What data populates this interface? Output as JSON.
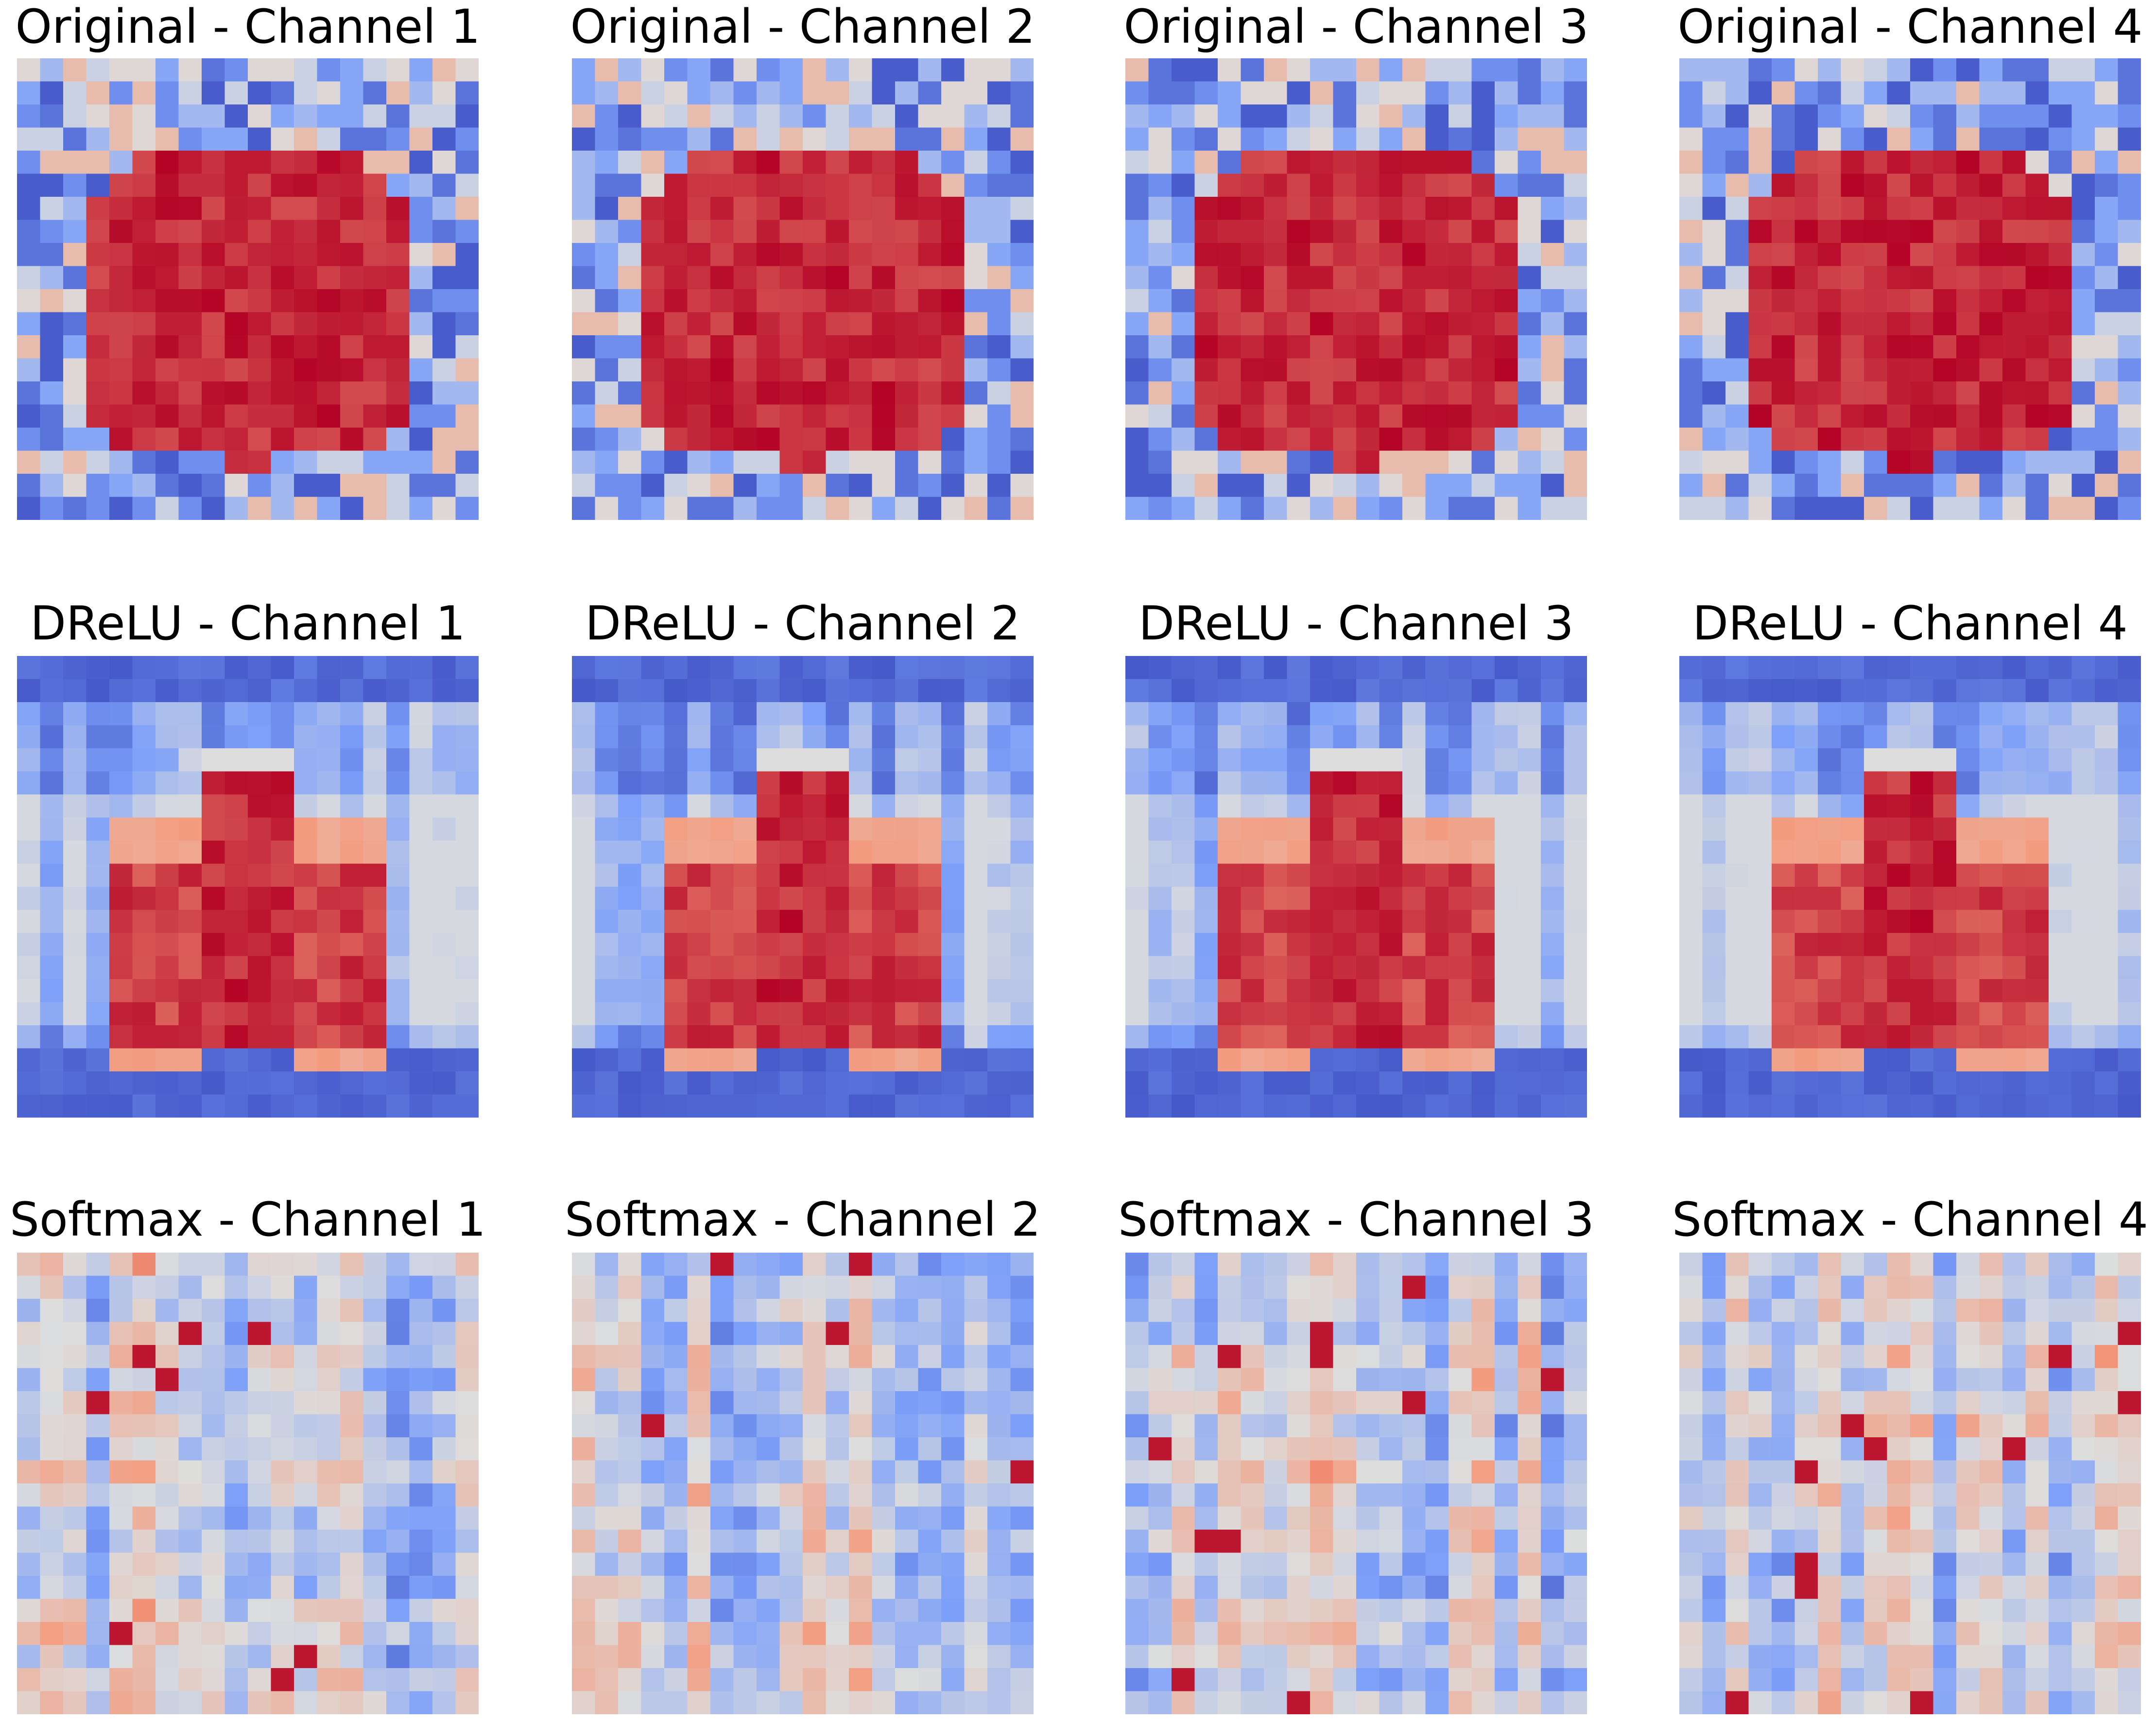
{
  "chart_data": {
    "type": "heatmap",
    "colormap": "coolwarm",
    "grid_size": 20,
    "rows": [
      {
        "name": "Original",
        "pattern": "blob",
        "panels": [
          {
            "title": "Original - Channel 1",
            "channel": 1,
            "seed": 11
          },
          {
            "title": "Original - Channel 2",
            "channel": 2,
            "seed": 12
          },
          {
            "title": "Original - Channel 3",
            "channel": 3,
            "seed": 13
          },
          {
            "title": "Original - Channel 4",
            "channel": 4,
            "seed": 14
          }
        ]
      },
      {
        "name": "DReLU",
        "pattern": "bars",
        "panels": [
          {
            "title": "DReLU - Channel 1",
            "channel": 1,
            "seed": 21
          },
          {
            "title": "DReLU - Channel 2",
            "channel": 2,
            "seed": 22
          },
          {
            "title": "DReLU - Channel 3",
            "channel": 3,
            "seed": 23
          },
          {
            "title": "DReLU - Channel 4",
            "channel": 4,
            "seed": 24
          }
        ]
      },
      {
        "name": "Softmax",
        "pattern": "noise",
        "panels": [
          {
            "title": "Softmax - Channel 1",
            "channel": 1,
            "seed": 31
          },
          {
            "title": "Softmax - Channel 2",
            "channel": 2,
            "seed": 32
          },
          {
            "title": "Softmax - Channel 3",
            "channel": 3,
            "seed": 33
          },
          {
            "title": "Softmax - Channel 4",
            "channel": 4,
            "seed": 34
          }
        ]
      }
    ]
  }
}
